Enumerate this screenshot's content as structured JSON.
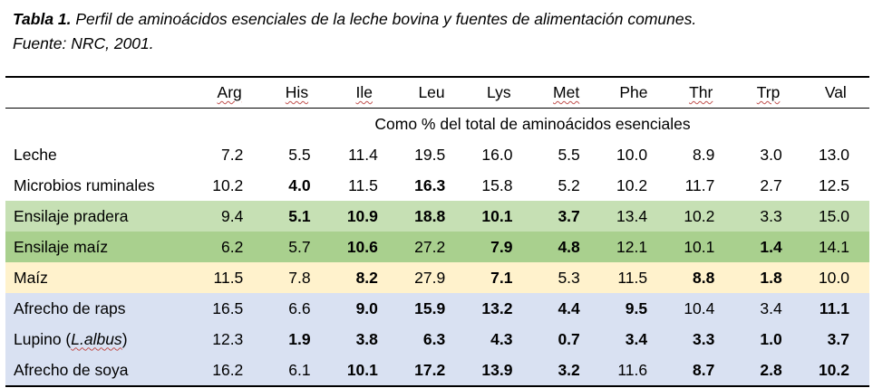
{
  "caption": {
    "label": "Tabla 1.",
    "text": " Perfil de aminoácidos esenciales de la leche bovina y fuentes de alimentación comunes.",
    "source": "Fuente: NRC, 2001."
  },
  "table": {
    "corner": "",
    "columns": [
      "Arg",
      "His",
      "Ile",
      "Leu",
      "Lys",
      "Met",
      "Phe",
      "Thr",
      "Trp",
      "Val"
    ],
    "unit_label": "Como % del total de aminoácidos esenciales",
    "colors": {
      "white": "#ffffff",
      "light_green": "#c6e0b4",
      "medium_green": "#a9d08e",
      "light_yellow": "#fff2cc",
      "light_blue": "#d9e1f2"
    },
    "rows": [
      {
        "name": "Leche",
        "name_prefix": "",
        "name_italic": "",
        "name_suffix": "",
        "color": "#ffffff",
        "values": [
          "7.2",
          "5.5",
          "11.4",
          "19.5",
          "16.0",
          "5.5",
          "10.0",
          "8.9",
          "3.0",
          "13.0"
        ],
        "bold": [
          false,
          false,
          false,
          false,
          false,
          false,
          false,
          false,
          false,
          false
        ]
      },
      {
        "name": "Microbios ruminales",
        "name_prefix": "",
        "name_italic": "",
        "name_suffix": "",
        "color": "#ffffff",
        "values": [
          "10.2",
          "4.0",
          "11.5",
          "16.3",
          "15.8",
          "5.2",
          "10.2",
          "11.7",
          "2.7",
          "12.5"
        ],
        "bold": [
          false,
          true,
          false,
          true,
          false,
          false,
          false,
          false,
          false,
          false
        ]
      },
      {
        "name": "Ensilaje pradera",
        "name_prefix": "",
        "name_italic": "",
        "name_suffix": "",
        "color": "#c6e0b4",
        "values": [
          "9.4",
          "5.1",
          "10.9",
          "18.8",
          "10.1",
          "3.7",
          "13.4",
          "10.2",
          "3.3",
          "15.0"
        ],
        "bold": [
          false,
          true,
          true,
          true,
          true,
          true,
          false,
          false,
          false,
          false
        ]
      },
      {
        "name": "Ensilaje maíz",
        "name_prefix": "",
        "name_italic": "",
        "name_suffix": "",
        "color": "#a9d08e",
        "values": [
          "6.2",
          "5.7",
          "10.6",
          "27.2",
          "7.9",
          "4.8",
          "12.1",
          "10.1",
          "1.4",
          "14.1"
        ],
        "bold": [
          false,
          false,
          true,
          false,
          true,
          true,
          false,
          false,
          true,
          false
        ]
      },
      {
        "name": "Maíz",
        "name_prefix": "",
        "name_italic": "",
        "name_suffix": "",
        "color": "#fff2cc",
        "values": [
          "11.5",
          "7.8",
          "8.2",
          "27.9",
          "7.1",
          "5.3",
          "11.5",
          "8.8",
          "1.8",
          "10.0"
        ],
        "bold": [
          false,
          false,
          true,
          false,
          true,
          false,
          false,
          true,
          true,
          false
        ]
      },
      {
        "name": "Afrecho de raps",
        "name_prefix": "",
        "name_italic": "",
        "name_suffix": "",
        "color": "#d9e1f2",
        "values": [
          "16.5",
          "6.6",
          "9.0",
          "15.9",
          "13.2",
          "4.4",
          "9.5",
          "10.4",
          "3.4",
          "11.1"
        ],
        "bold": [
          false,
          false,
          true,
          true,
          true,
          true,
          true,
          false,
          false,
          true
        ]
      },
      {
        "name": "",
        "name_prefix": "Lupino (",
        "name_italic": "L.albus",
        "name_suffix": ")",
        "color": "#d9e1f2",
        "values": [
          "12.3",
          "1.9",
          "3.8",
          "6.3",
          "4.3",
          "0.7",
          "3.4",
          "3.3",
          "1.0",
          "3.7"
        ],
        "bold": [
          false,
          true,
          true,
          true,
          true,
          true,
          true,
          true,
          true,
          true
        ]
      },
      {
        "name": "Afrecho de soya",
        "name_prefix": "",
        "name_italic": "",
        "name_suffix": "",
        "color": "#d9e1f2",
        "values": [
          "16.2",
          "6.1",
          "10.1",
          "17.2",
          "13.9",
          "3.2",
          "11.6",
          "8.7",
          "2.8",
          "10.2"
        ],
        "bold": [
          false,
          false,
          true,
          true,
          true,
          true,
          false,
          true,
          true,
          true
        ]
      }
    ]
  }
}
